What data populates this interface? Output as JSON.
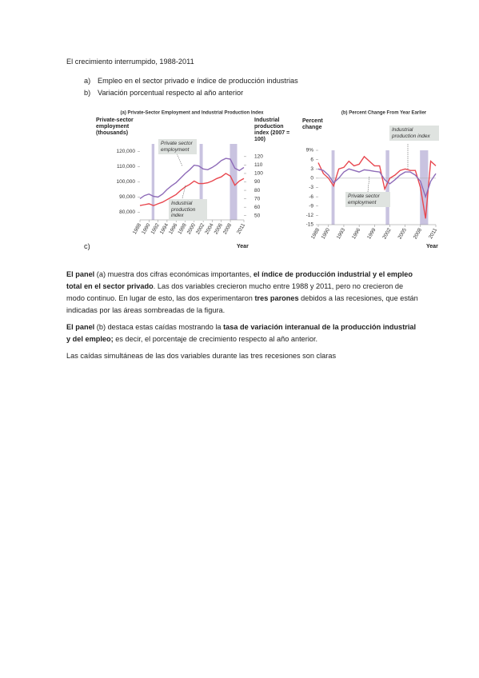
{
  "document": {
    "heading": "El crecimiento interrumpido, 1988-2011",
    "list": [
      {
        "marker": "a)",
        "text": "Empleo en el sector privado e índice de producción industrias"
      },
      {
        "marker": "b)",
        "text": "Variación porcentual respecto al año anterior"
      }
    ],
    "figure_marker": "c)",
    "paragraphs": [
      [
        {
          "text": "El panel",
          "bold": true
        },
        {
          "text": " (a) muestra dos cifras económicas importantes, ",
          "bold": false
        },
        {
          "text": "el índice de producción industrial y el empleo total en el sector privado",
          "bold": true
        },
        {
          "text": ". Las dos variables crecieron mucho entre 1988 y 2011, pero no crecieron de modo continuo. En lugar de esto, las dos experimentaron ",
          "bold": false
        },
        {
          "text": "tres parones",
          "bold": true
        },
        {
          "text": " debidos a las recesiones, que están indicadas por las áreas sombreadas de la figura.",
          "bold": false
        }
      ],
      [
        {
          "text": "El panel",
          "bold": true
        },
        {
          "text": " (b) destaca estas caídas mostrando la ",
          "bold": false
        },
        {
          "text": "tasa de variación interanual de la producción industrial y del empleo;",
          "bold": true
        },
        {
          "text": " es decir, el porcentaje de crecimiento respecto al año anterior.",
          "bold": false
        }
      ],
      [
        {
          "text": "Las caídas simultáneas de las dos variables durante las tres recesiones son claras",
          "bold": false
        }
      ]
    ]
  },
  "chart_data": [
    {
      "type": "line",
      "title": "(a) Private-Sector Employment and Industrial Production Index",
      "y_label": "Private-sector employment (thousands)",
      "y2_label": "Industrial production index (2007 = 100)",
      "x_label": "Year",
      "x": [
        1988,
        1989,
        1990,
        1991,
        1992,
        1993,
        1994,
        1995,
        1996,
        1997,
        1998,
        1999,
        2000,
        2001,
        2002,
        2003,
        2004,
        2005,
        2006,
        2007,
        2008,
        2009,
        2010,
        2011
      ],
      "xlim": [
        1988,
        2011
      ],
      "xticks": [
        1988,
        1990,
        1992,
        1994,
        1996,
        1998,
        2000,
        2002,
        2004,
        2006,
        2008,
        2011
      ],
      "ylim": [
        75000,
        125000
      ],
      "yticks": [
        {
          "value": 80000,
          "label": "80,000"
        },
        {
          "value": 90000,
          "label": "90,000"
        },
        {
          "value": 100000,
          "label": "100,000"
        },
        {
          "value": 110000,
          "label": "110,000"
        },
        {
          "value": 120000,
          "label": "120,000"
        }
      ],
      "y2lim": [
        45,
        135
      ],
      "y2ticks": [
        50,
        60,
        70,
        80,
        90,
        100,
        110,
        120
      ],
      "shaded_periods": [
        [
          1990.6,
          1991.2
        ],
        [
          2001.2,
          2001.9
        ],
        [
          2007.9,
          2009.5
        ]
      ],
      "shade_color": "#c9c3e0",
      "series": [
        {
          "name": "Private sector employment",
          "color": "#8e6bb8",
          "values": [
            89000,
            91000,
            92000,
            90500,
            90000,
            92000,
            95000,
            97500,
            99500,
            102500,
            105500,
            108000,
            111000,
            110500,
            108500,
            108000,
            109500,
            111500,
            114000,
            115500,
            115000,
            109000,
            107500,
            109500
          ]
        },
        {
          "name": "Industrial production index",
          "color": "#e8474f",
          "axis": "y2",
          "values": [
            62,
            63,
            64,
            62,
            64,
            66,
            69,
            72,
            75,
            80,
            84,
            87,
            91,
            88,
            88,
            89,
            91,
            94,
            96,
            100,
            97,
            86,
            91,
            94
          ]
        }
      ]
    },
    {
      "type": "line",
      "title": "(b) Percent Change From Year Earlier",
      "y_label": "Percent change",
      "x_label": "Year",
      "x": [
        1988,
        1989,
        1990,
        1991,
        1992,
        1993,
        1994,
        1995,
        1996,
        1997,
        1998,
        1999,
        2000,
        2001,
        2002,
        2003,
        2004,
        2005,
        2006,
        2007,
        2008,
        2009,
        2010,
        2011
      ],
      "xlim": [
        1988,
        2011
      ],
      "xticks": [
        1988,
        1990,
        1993,
        1996,
        1999,
        2002,
        2005,
        2008,
        2011
      ],
      "ylim": [
        -15,
        9
      ],
      "yticks": [
        {
          "value": 9,
          "label": "9%"
        },
        6,
        3,
        0,
        -3,
        -6,
        -9,
        -12,
        -15
      ],
      "zero_line": true,
      "shaded_periods": [
        [
          1990.6,
          1991.2
        ],
        [
          2001.2,
          2001.9
        ],
        [
          2007.9,
          2009.5
        ]
      ],
      "shade_color": "#c9c3e0",
      "series": [
        {
          "name": "Industrial production index",
          "color": "#e8474f",
          "values": [
            5,
            1.5,
            0,
            -2.5,
            3,
            3.5,
            5.5,
            4,
            4.5,
            7,
            5.5,
            4,
            4,
            -3.5,
            0,
            1,
            2.5,
            3,
            2.5,
            2.5,
            -3,
            -13,
            5.5,
            4
          ]
        },
        {
          "name": "Private sector employment",
          "color": "#8e6bb8",
          "values": [
            3,
            2.5,
            1,
            -1.5,
            0,
            2,
            3,
            2.5,
            2,
            2.7,
            2.5,
            2.2,
            2,
            -0.5,
            -1.8,
            -0.5,
            1,
            2,
            2,
            1,
            -1,
            -6,
            -1,
            1.5
          ]
        }
      ]
    }
  ]
}
